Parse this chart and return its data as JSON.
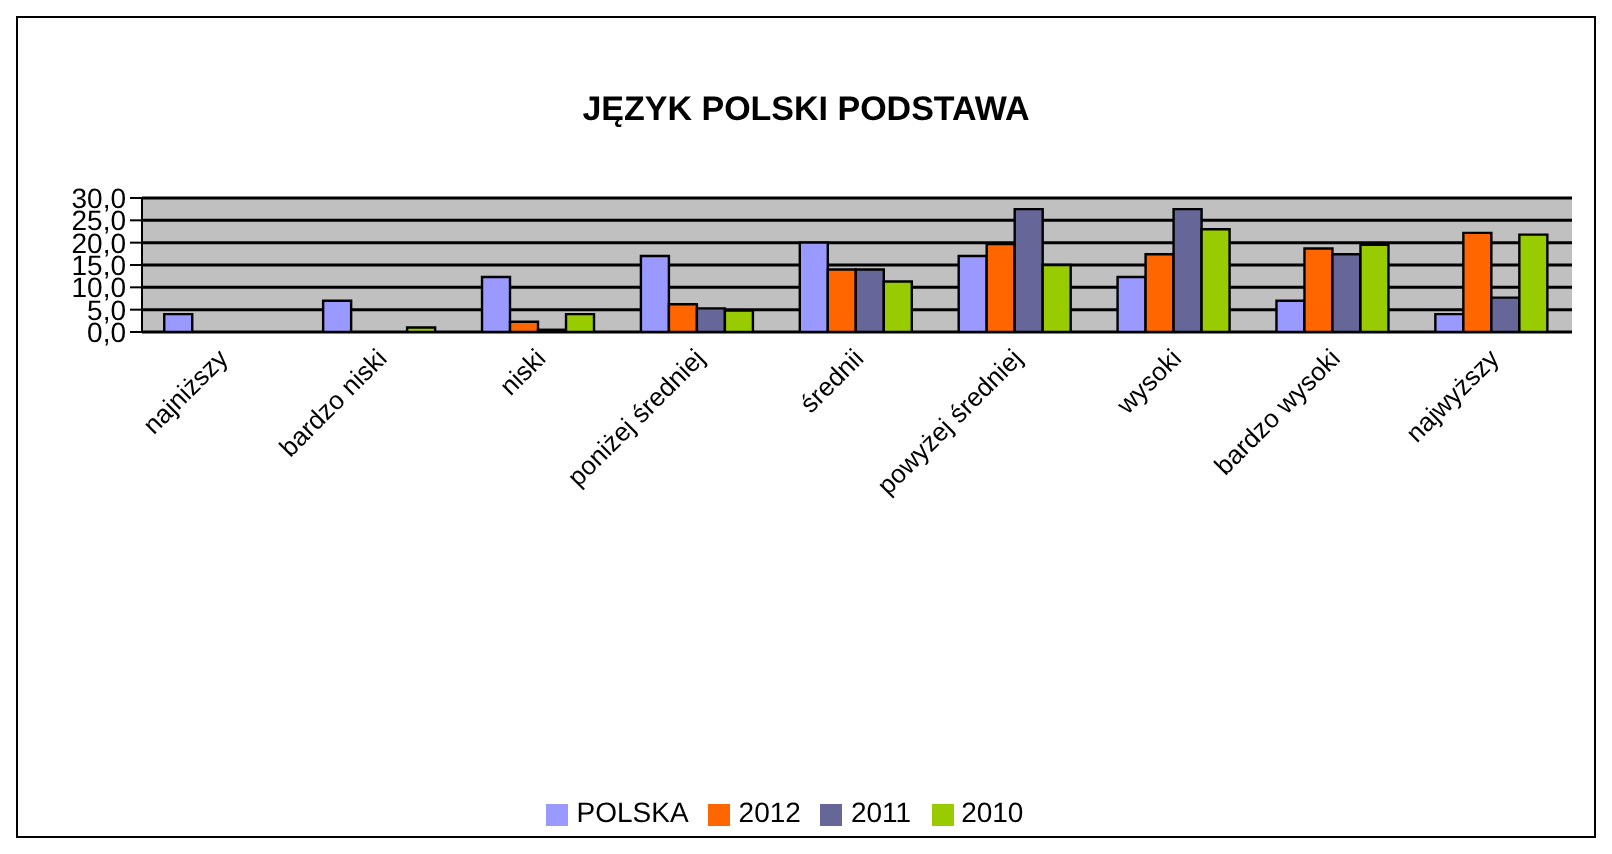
{
  "chart_data": {
    "type": "bar",
    "title": "JĘZYK POLSKI PODSTAWA",
    "categories": [
      "najniższy",
      "bardzo niski",
      "niski",
      "poniżej średniej",
      "średnii",
      "powyżej średniej",
      "wysoki",
      "bardzo wysoki",
      "najwyższy"
    ],
    "series": [
      {
        "name": "POLSKA",
        "color": "#9999ff",
        "values": [
          4,
          7,
          12.3,
          17,
          20,
          17,
          12.3,
          7,
          4
        ]
      },
      {
        "name": "2012",
        "color": "#ff6600",
        "values": [
          0,
          0,
          2.3,
          6.2,
          14,
          19.7,
          17.4,
          18.7,
          22.2
        ]
      },
      {
        "name": "2011",
        "color": "#666699",
        "values": [
          0,
          0,
          0.5,
          5.3,
          14,
          27.5,
          27.5,
          17.4,
          7.7
        ]
      },
      {
        "name": "2010",
        "color": "#99cc00",
        "values": [
          0,
          1,
          4,
          4.8,
          11.3,
          15,
          23,
          19.5,
          21.8
        ]
      }
    ],
    "ylim": [
      0,
      30
    ],
    "yticks": [
      {
        "value": 0,
        "label": "0,0"
      },
      {
        "value": 5,
        "label": "5,0"
      },
      {
        "value": 10,
        "label": "10,0"
      },
      {
        "value": 15,
        "label": "15,0"
      },
      {
        "value": 20,
        "label": "20,0"
      },
      {
        "value": 25,
        "label": "25,0"
      },
      {
        "value": 30,
        "label": "30,0"
      }
    ],
    "grid": "y",
    "legend": "bottom"
  }
}
